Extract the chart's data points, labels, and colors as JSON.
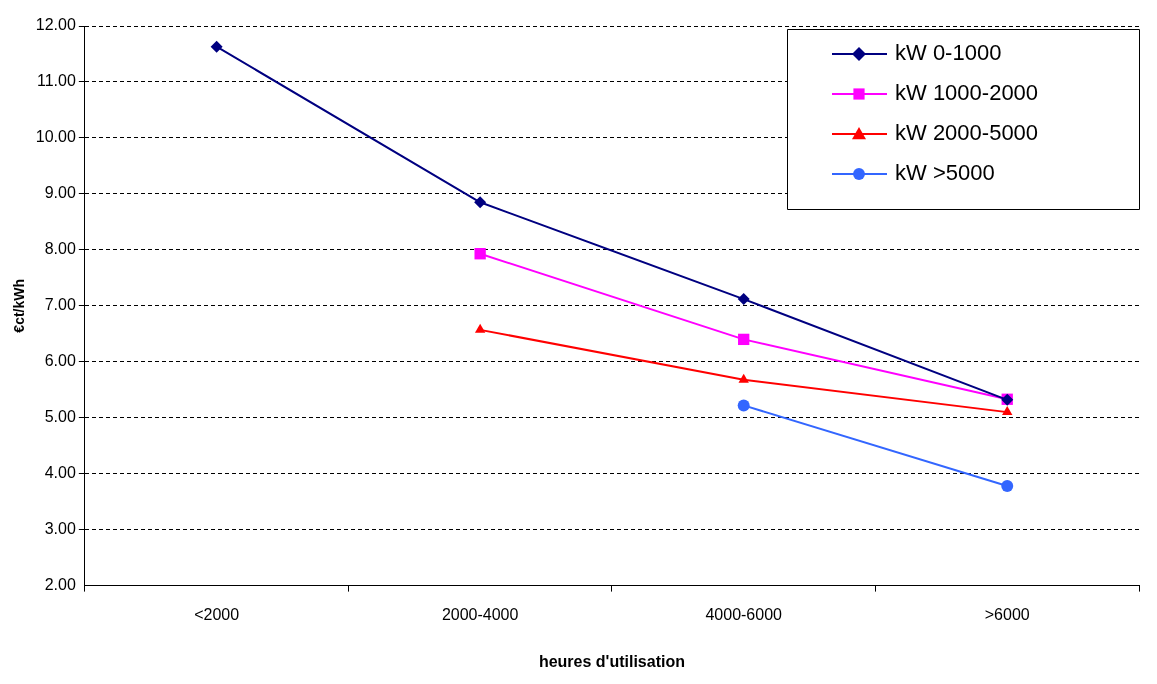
{
  "chart_data": {
    "type": "line",
    "xlabel": "heures d'utilisation",
    "ylabel": "€ct/kWh",
    "categories": [
      "<2000",
      "2000-4000",
      "4000-6000",
      ">6000"
    ],
    "series": [
      {
        "name": "kW 0-1000",
        "color": "#000080",
        "marker": "diamond",
        "values": [
          11.63,
          8.85,
          7.12,
          5.32
        ]
      },
      {
        "name": "kW 1000-2000",
        "color": "#ff00ff",
        "marker": "square",
        "values": [
          null,
          7.93,
          6.4,
          5.33
        ]
      },
      {
        "name": "kW 2000-5000",
        "color": "#ff0000",
        "marker": "triangle",
        "values": [
          null,
          6.57,
          5.68,
          5.1
        ]
      },
      {
        "name": "kW >5000",
        "color": "#3366ff",
        "marker": "circle",
        "values": [
          null,
          null,
          5.22,
          3.78
        ]
      }
    ],
    "ylim": [
      2,
      12
    ],
    "yticks": [
      {
        "value": 2,
        "label": "2.00"
      },
      {
        "value": 3,
        "label": "3.00"
      },
      {
        "value": 4,
        "label": "4.00"
      },
      {
        "value": 5,
        "label": "5.00"
      },
      {
        "value": 6,
        "label": "6.00"
      },
      {
        "value": 7,
        "label": "7.00"
      },
      {
        "value": 8,
        "label": "8.00"
      },
      {
        "value": 9,
        "label": "9.00"
      },
      {
        "value": 10,
        "label": "10.00"
      },
      {
        "value": 11,
        "label": "11.00"
      },
      {
        "value": 12,
        "label": "12.00"
      }
    ],
    "grid": "y",
    "legend": "top right",
    "line_style": "solid"
  }
}
